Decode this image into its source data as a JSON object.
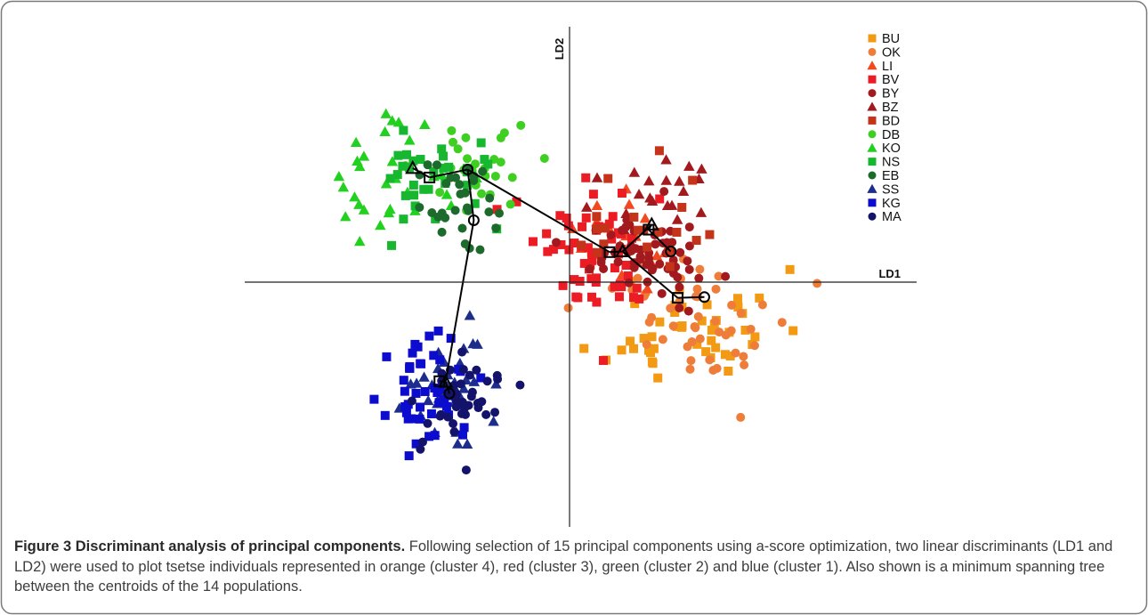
{
  "chart_data": {
    "type": "scatter",
    "title": "",
    "xlabel": "LD1",
    "ylabel": "LD2",
    "xlim": [
      -4.4,
      4.4
    ],
    "ylim": [
      -3.5,
      3.4
    ],
    "grid": false,
    "legend_position": "top-right",
    "colors": {
      "orange": "#f29a14",
      "light_orange": "#ef7d3a",
      "orange_red": "#f14a21",
      "red": "#ec1c24",
      "dark_red": "#a31a1e",
      "brick": "#c3341a",
      "light_green": "#3fcf22",
      "bright_green": "#22d11f",
      "green": "#17b82f",
      "dark_green": "#1c6b2c",
      "blue": "#1c2d8c",
      "royal_blue": "#0c0ccf",
      "navy": "#13136b"
    },
    "series": [
      {
        "name": "BU",
        "marker": "square",
        "color": "#f29a14",
        "cluster": 4,
        "n": 46,
        "center": [
          1.45,
          -0.75
        ],
        "spread": [
          0.9,
          0.65
        ],
        "seed": 11
      },
      {
        "name": "OK",
        "marker": "circle",
        "color": "#ef7d3a",
        "cluster": 4,
        "n": 48,
        "center": [
          1.65,
          -0.65
        ],
        "spread": [
          1.1,
          0.7
        ],
        "seed": 12
      },
      {
        "name": "LI",
        "marker": "triangle",
        "color": "#f14a21",
        "cluster": 3,
        "n": 18,
        "center": [
          0.55,
          0.45
        ],
        "spread": [
          0.65,
          0.55
        ],
        "seed": 13
      },
      {
        "name": "BV",
        "marker": "square",
        "color": "#ec1c24",
        "cluster": 3,
        "n": 60,
        "center": [
          0.35,
          0.3
        ],
        "spread": [
          0.8,
          0.75
        ],
        "seed": 14
      },
      {
        "name": "BY",
        "marker": "circle",
        "color": "#a31a1e",
        "cluster": 3,
        "n": 60,
        "center": [
          0.95,
          0.25
        ],
        "spread": [
          0.65,
          0.55
        ],
        "seed": 15
      },
      {
        "name": "BZ",
        "marker": "triangle",
        "color": "#a31a1e",
        "cluster": 3,
        "n": 20,
        "center": [
          1.0,
          1.05
        ],
        "spread": [
          0.7,
          0.45
        ],
        "seed": 16
      },
      {
        "name": "BD",
        "marker": "square",
        "color": "#c3341a",
        "cluster": 3,
        "n": 20,
        "center": [
          0.9,
          0.7
        ],
        "spread": [
          0.8,
          0.6
        ],
        "seed": 17
      },
      {
        "name": "DB",
        "marker": "circle",
        "color": "#3fcf22",
        "cluster": 2,
        "n": 26,
        "center": [
          -1.45,
          1.35
        ],
        "spread": [
          0.6,
          0.65
        ],
        "seed": 18
      },
      {
        "name": "KO",
        "marker": "triangle",
        "color": "#22d11f",
        "cluster": 2,
        "n": 30,
        "center": [
          -2.55,
          1.55
        ],
        "spread": [
          0.7,
          0.75
        ],
        "seed": 19
      },
      {
        "name": "NS",
        "marker": "square",
        "color": "#17b82f",
        "cluster": 2,
        "n": 32,
        "center": [
          -1.95,
          1.35
        ],
        "spread": [
          0.65,
          0.65
        ],
        "seed": 20
      },
      {
        "name": "EB",
        "marker": "circle",
        "color": "#1c6b2c",
        "cluster": 2,
        "n": 30,
        "center": [
          -1.55,
          0.9
        ],
        "spread": [
          0.55,
          0.55
        ],
        "seed": 21
      },
      {
        "name": "SS",
        "marker": "triangle",
        "color": "#1c2d8c",
        "cluster": 1,
        "n": 35,
        "center": [
          -1.8,
          -1.6
        ],
        "spread": [
          0.5,
          0.65
        ],
        "seed": 22
      },
      {
        "name": "KG",
        "marker": "square",
        "color": "#0c0ccf",
        "cluster": 1,
        "n": 45,
        "center": [
          -1.95,
          -1.65
        ],
        "spread": [
          0.45,
          0.55
        ],
        "seed": 23
      },
      {
        "name": "MA",
        "marker": "circle",
        "color": "#13136b",
        "cluster": 1,
        "n": 40,
        "center": [
          -1.65,
          -1.85
        ],
        "spread": [
          0.45,
          0.6
        ],
        "seed": 24
      }
    ],
    "centroids": [
      {
        "name": "KO",
        "marker": "triangle",
        "x": -2.2,
        "y": 1.45
      },
      {
        "name": "NS",
        "marker": "square",
        "x": -1.98,
        "y": 1.32
      },
      {
        "name": "DB",
        "marker": "circle",
        "x": -1.48,
        "y": 1.43
      },
      {
        "name": "EB",
        "marker": "circle",
        "x": -1.4,
        "y": 0.73
      },
      {
        "name": "LI",
        "marker": "triangle",
        "x": 0.55,
        "y": 0.3
      },
      {
        "name": "BV",
        "marker": "square",
        "x": 0.38,
        "y": 0.29
      },
      {
        "name": "BZ",
        "marker": "triangle",
        "x": 0.93,
        "y": 0.67
      },
      {
        "name": "BD",
        "marker": "square",
        "x": 0.89,
        "y": 0.6
      },
      {
        "name": "BY",
        "marker": "circle",
        "x": 1.18,
        "y": 0.3
      },
      {
        "name": "BU",
        "marker": "square",
        "x": 1.27,
        "y": -0.34
      },
      {
        "name": "OK",
        "marker": "circle",
        "x": 1.62,
        "y": -0.33
      },
      {
        "name": "SS",
        "marker": "triangle",
        "x": -1.77,
        "y": -1.5
      },
      {
        "name": "KG",
        "marker": "square",
        "x": -1.85,
        "y": -1.49
      },
      {
        "name": "MA",
        "marker": "circle",
        "x": -1.72,
        "y": -1.66
      }
    ],
    "spanning_tree_edges": [
      [
        "KO",
        "NS"
      ],
      [
        "NS",
        "DB"
      ],
      [
        "DB",
        "EB"
      ],
      [
        "DB",
        "BV"
      ],
      [
        "BV",
        "LI"
      ],
      [
        "LI",
        "BZ"
      ],
      [
        "BZ",
        "BD"
      ],
      [
        "BD",
        "BY"
      ],
      [
        "LI",
        "BU"
      ],
      [
        "BU",
        "OK"
      ],
      [
        "EB",
        "SS"
      ],
      [
        "SS",
        "KG"
      ],
      [
        "SS",
        "MA"
      ]
    ]
  },
  "caption": {
    "title": "Figure 3 Discriminant analysis of principal components.",
    "text": "Following selection of 15 principal components using a-score optimization, two linear discriminants (LD1 and LD2) were used to plot tsetse individuals represented in orange (cluster 4), red (cluster 3), green (cluster 2) and blue (cluster 1). Also shown is a minimum spanning tree between the centroids of the 14 populations."
  }
}
